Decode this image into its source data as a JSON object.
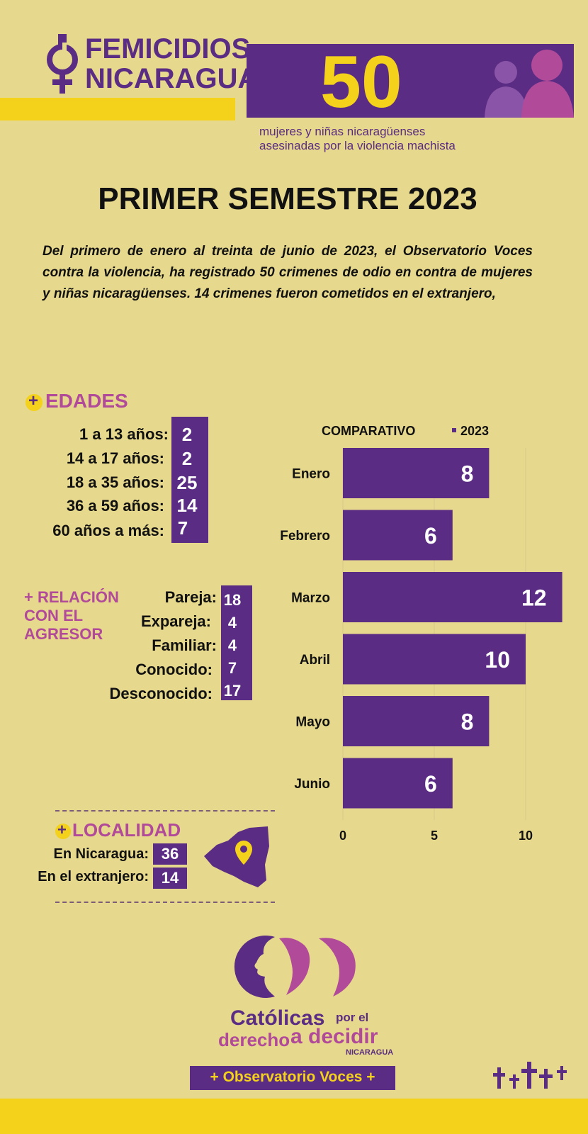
{
  "header": {
    "logo_line1": "FEMICIDIOS",
    "logo_line2": "NICARAGUA",
    "big_number": "50",
    "sub_line1": "mujeres y niñas nicaragüenses",
    "sub_line2": "asesinadas por la violencia machista"
  },
  "title": "PRIMER SEMESTRE 2023",
  "intro": "Del primero de enero al treinta de junio de 2023, el Observatorio Voces contra la violencia, ha registrado 50 crimenes de odio en contra de mujeres y niñas nicaragüenses. 14 crimenes fueron cometidos en el extranjero,",
  "edades": {
    "heading": "EDADES",
    "plus": "+",
    "rows": [
      {
        "label": "1 a  13 años:",
        "value": "2"
      },
      {
        "label": "14 a 17 años:",
        "value": "2"
      },
      {
        "label": "18 a 35 años:",
        "value": "25"
      },
      {
        "label": "36 a 59 años:",
        "value": "14"
      },
      {
        "label": "60 años a más:",
        "value": "7"
      }
    ]
  },
  "relacion": {
    "heading_line1": "+ RELACIÓN",
    "heading_line2": "CON EL",
    "heading_line3": "AGRESOR",
    "rows": [
      {
        "label": "Pareja:",
        "value": "18"
      },
      {
        "label": "Expareja:",
        "value": "4"
      },
      {
        "label": "Familiar:",
        "value": "4"
      },
      {
        "label": "Conocido:",
        "value": "7"
      },
      {
        "label": "Desconocido:",
        "value": "17"
      }
    ]
  },
  "localidad": {
    "heading": "LOCALIDAD",
    "plus": "+",
    "rows": [
      {
        "label": "En Nicaragua:",
        "value": "36"
      },
      {
        "label": "En el extranjero:",
        "value": "14"
      }
    ]
  },
  "chart_data": {
    "type": "bar",
    "orientation": "horizontal",
    "title": "COMPARATIVO",
    "legend": "2023",
    "categories": [
      "Enero",
      "Febrero",
      "Marzo",
      "Abril",
      "Mayo",
      "Junio"
    ],
    "series": [
      {
        "name": "2023",
        "values": [
          8,
          6,
          12,
          10,
          8,
          6
        ]
      }
    ],
    "xticks": [
      "0",
      "5",
      "10"
    ],
    "xlim": [
      0,
      12
    ],
    "color": "#5b2c83"
  },
  "footer": {
    "org_line1a": "Católicas",
    "org_line1b": "por el",
    "org_line2a": "derecho",
    "org_line2b": "a decidir",
    "org_country": "NICARAGUA",
    "banner": "+ Observatorio Voces +"
  },
  "colors": {
    "purple": "#5b2c83",
    "pink": "#b24a9a",
    "yellow": "#f4d11a",
    "background": "#e6d88c"
  }
}
